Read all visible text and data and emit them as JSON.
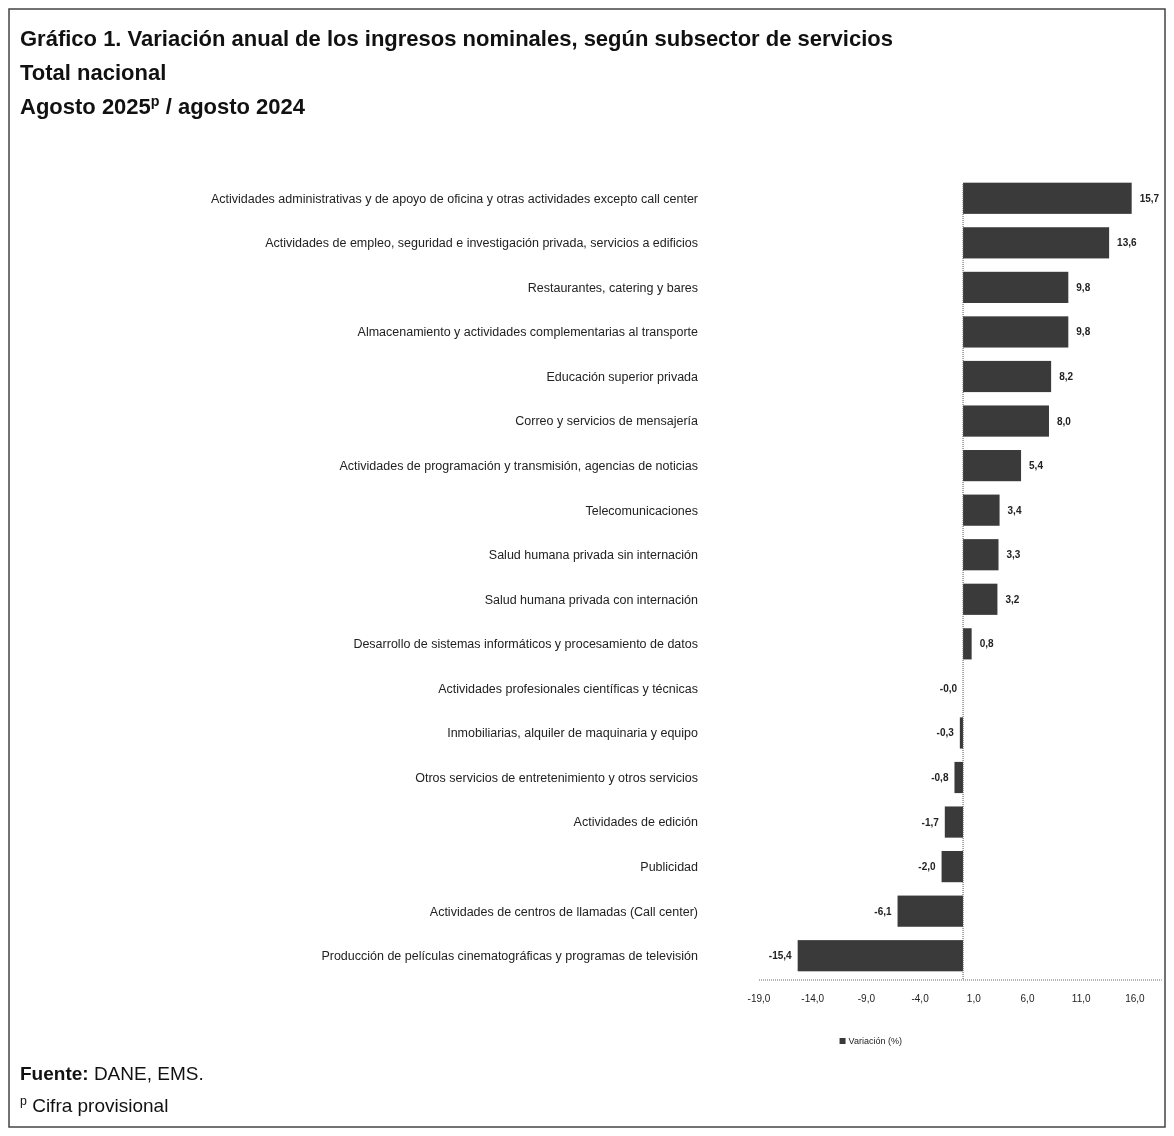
{
  "chart_data": {
    "type": "bar",
    "orientation": "horizontal",
    "title": "Gráfico 1. Variación anual de los ingresos nominales, según subsector de servicios",
    "subtitle": "Total nacional\nAgosto 2025$^{p}$ / agosto 2024",
    "categories": [
      "Actividades administrativas y de apoyo de oficina y otras actividades excepto call center",
      "Actividades de empleo, seguridad e investigación privada, servicios a edificios",
      "Restaurantes, catering y bares",
      "Almacenamiento y actividades complementarias al transporte",
      "Educación superior privada",
      "Correo y servicios de mensajería",
      "Actividades de programación y transmisión, agencias de noticias",
      "Telecomunicaciones",
      "Salud humana privada sin internación",
      "Salud humana privada con internación",
      "Desarrollo de sistemas informáticos y procesamiento de datos",
      "Actividades profesionales científicas y técnicas",
      "Inmobiliarias, alquiler de maquinaria y equipo",
      "Otros servicios de entretenimiento y otros servicios",
      "Actividades de edición",
      "Publicidad",
      "Actividades de centros de llamadas (Call center)",
      "Producción de películas cinematográficas y programas de televisión"
    ],
    "series": [
      {
        "name": "Variación (%)",
        "color": "#3a3a3a",
        "values": [
          15.7,
          13.6,
          9.8,
          9.8,
          8.2,
          8.0,
          5.4,
          3.4,
          3.3,
          3.2,
          0.8,
          0,
          -0.3,
          -0.8,
          -1.7,
          -2.0,
          -6.1,
          -15.4
        ],
        "value_labels": [
          "15,7",
          "13,6",
          "9,8",
          "9,8",
          "8,2",
          "8,0",
          "5,4",
          "3,4",
          "3,3",
          "3,2",
          "0,8",
          "-0,0",
          "-0,3",
          "-0,8",
          "-1,7",
          "-2,0",
          "-6,1",
          "-15,4"
        ]
      }
    ],
    "xlim": [
      -19,
      18.5
    ],
    "xticks": [
      {
        "value": -19,
        "label": "-19,0"
      },
      {
        "value": -14,
        "label": "-14,0"
      },
      {
        "value": -9,
        "label": "-9,0"
      },
      {
        "value": -4,
        "label": "-4,0"
      },
      {
        "value": 1,
        "label": "1,0"
      },
      {
        "value": 6,
        "label": "6,0"
      },
      {
        "value": 11,
        "label": "11,0"
      },
      {
        "value": 16,
        "label": "16,0"
      }
    ],
    "legend": "bottom",
    "grid": false,
    "ref_lines": [
      {
        "axis": "x",
        "value": 0,
        "color": "#555555",
        "line_style": "dotted"
      }
    ],
    "annotations": [
      "**Fuente:** DANE, EMS.",
      "$^{p}$ Cifra provisional"
    ]
  }
}
